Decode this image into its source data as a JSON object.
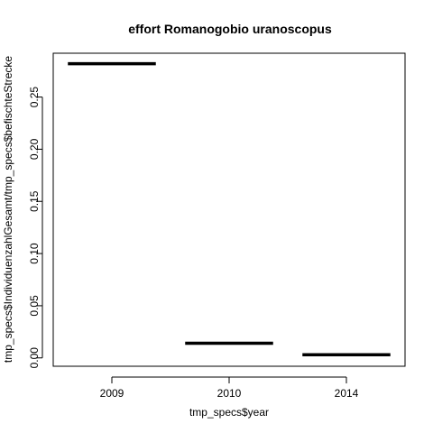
{
  "chart_data": {
    "type": "bar",
    "title": "effort Romanogobio uranoscopus",
    "xlabel": "tmp_specs$year",
    "ylabel": "tmp_specs$IndividuenzahlGesamt/tmp_specs$befischteStrecke",
    "categories": [
      "2009",
      "2010",
      "2014"
    ],
    "values": [
      0.282,
      0.014,
      0.003
    ],
    "ylim": [
      -0.008,
      0.292
    ],
    "yticks": [
      0.0,
      0.05,
      0.1,
      0.15,
      0.2,
      0.25
    ],
    "ytick_labels": [
      "0.00",
      "0.05",
      "0.10",
      "0.15",
      "0.20",
      "0.25"
    ],
    "style": "boxplot-median-lines",
    "grid": false,
    "line_color": "#000000"
  }
}
